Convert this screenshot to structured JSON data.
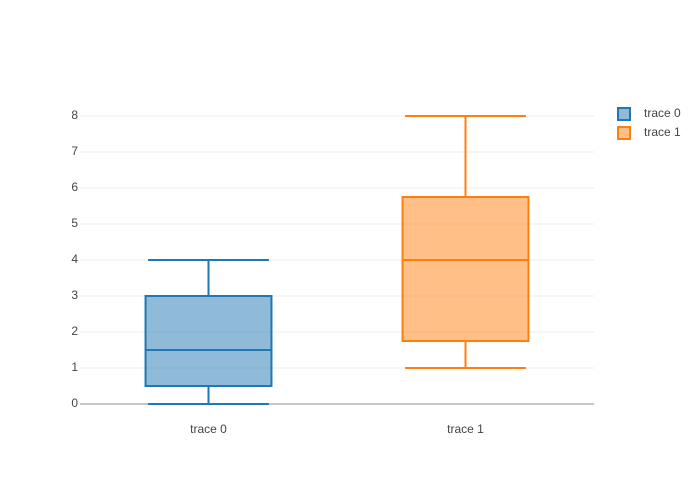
{
  "chart_data": {
    "type": "box",
    "series": [
      {
        "name": "trace 0",
        "color": "#1f77b4",
        "min": 0,
        "q1": 0.5,
        "median": 1.5,
        "q3": 3,
        "max": 4
      },
      {
        "name": "trace 1",
        "color": "#ff7f0e",
        "min": 1,
        "q1": 1.75,
        "median": 4,
        "q3": 5.75,
        "max": 8
      }
    ],
    "ylim": [
      -0.444,
      8.444
    ],
    "yticks": [
      0,
      1,
      2,
      3,
      4,
      5,
      6,
      7,
      8
    ],
    "grid": true,
    "legend": "top-right"
  }
}
